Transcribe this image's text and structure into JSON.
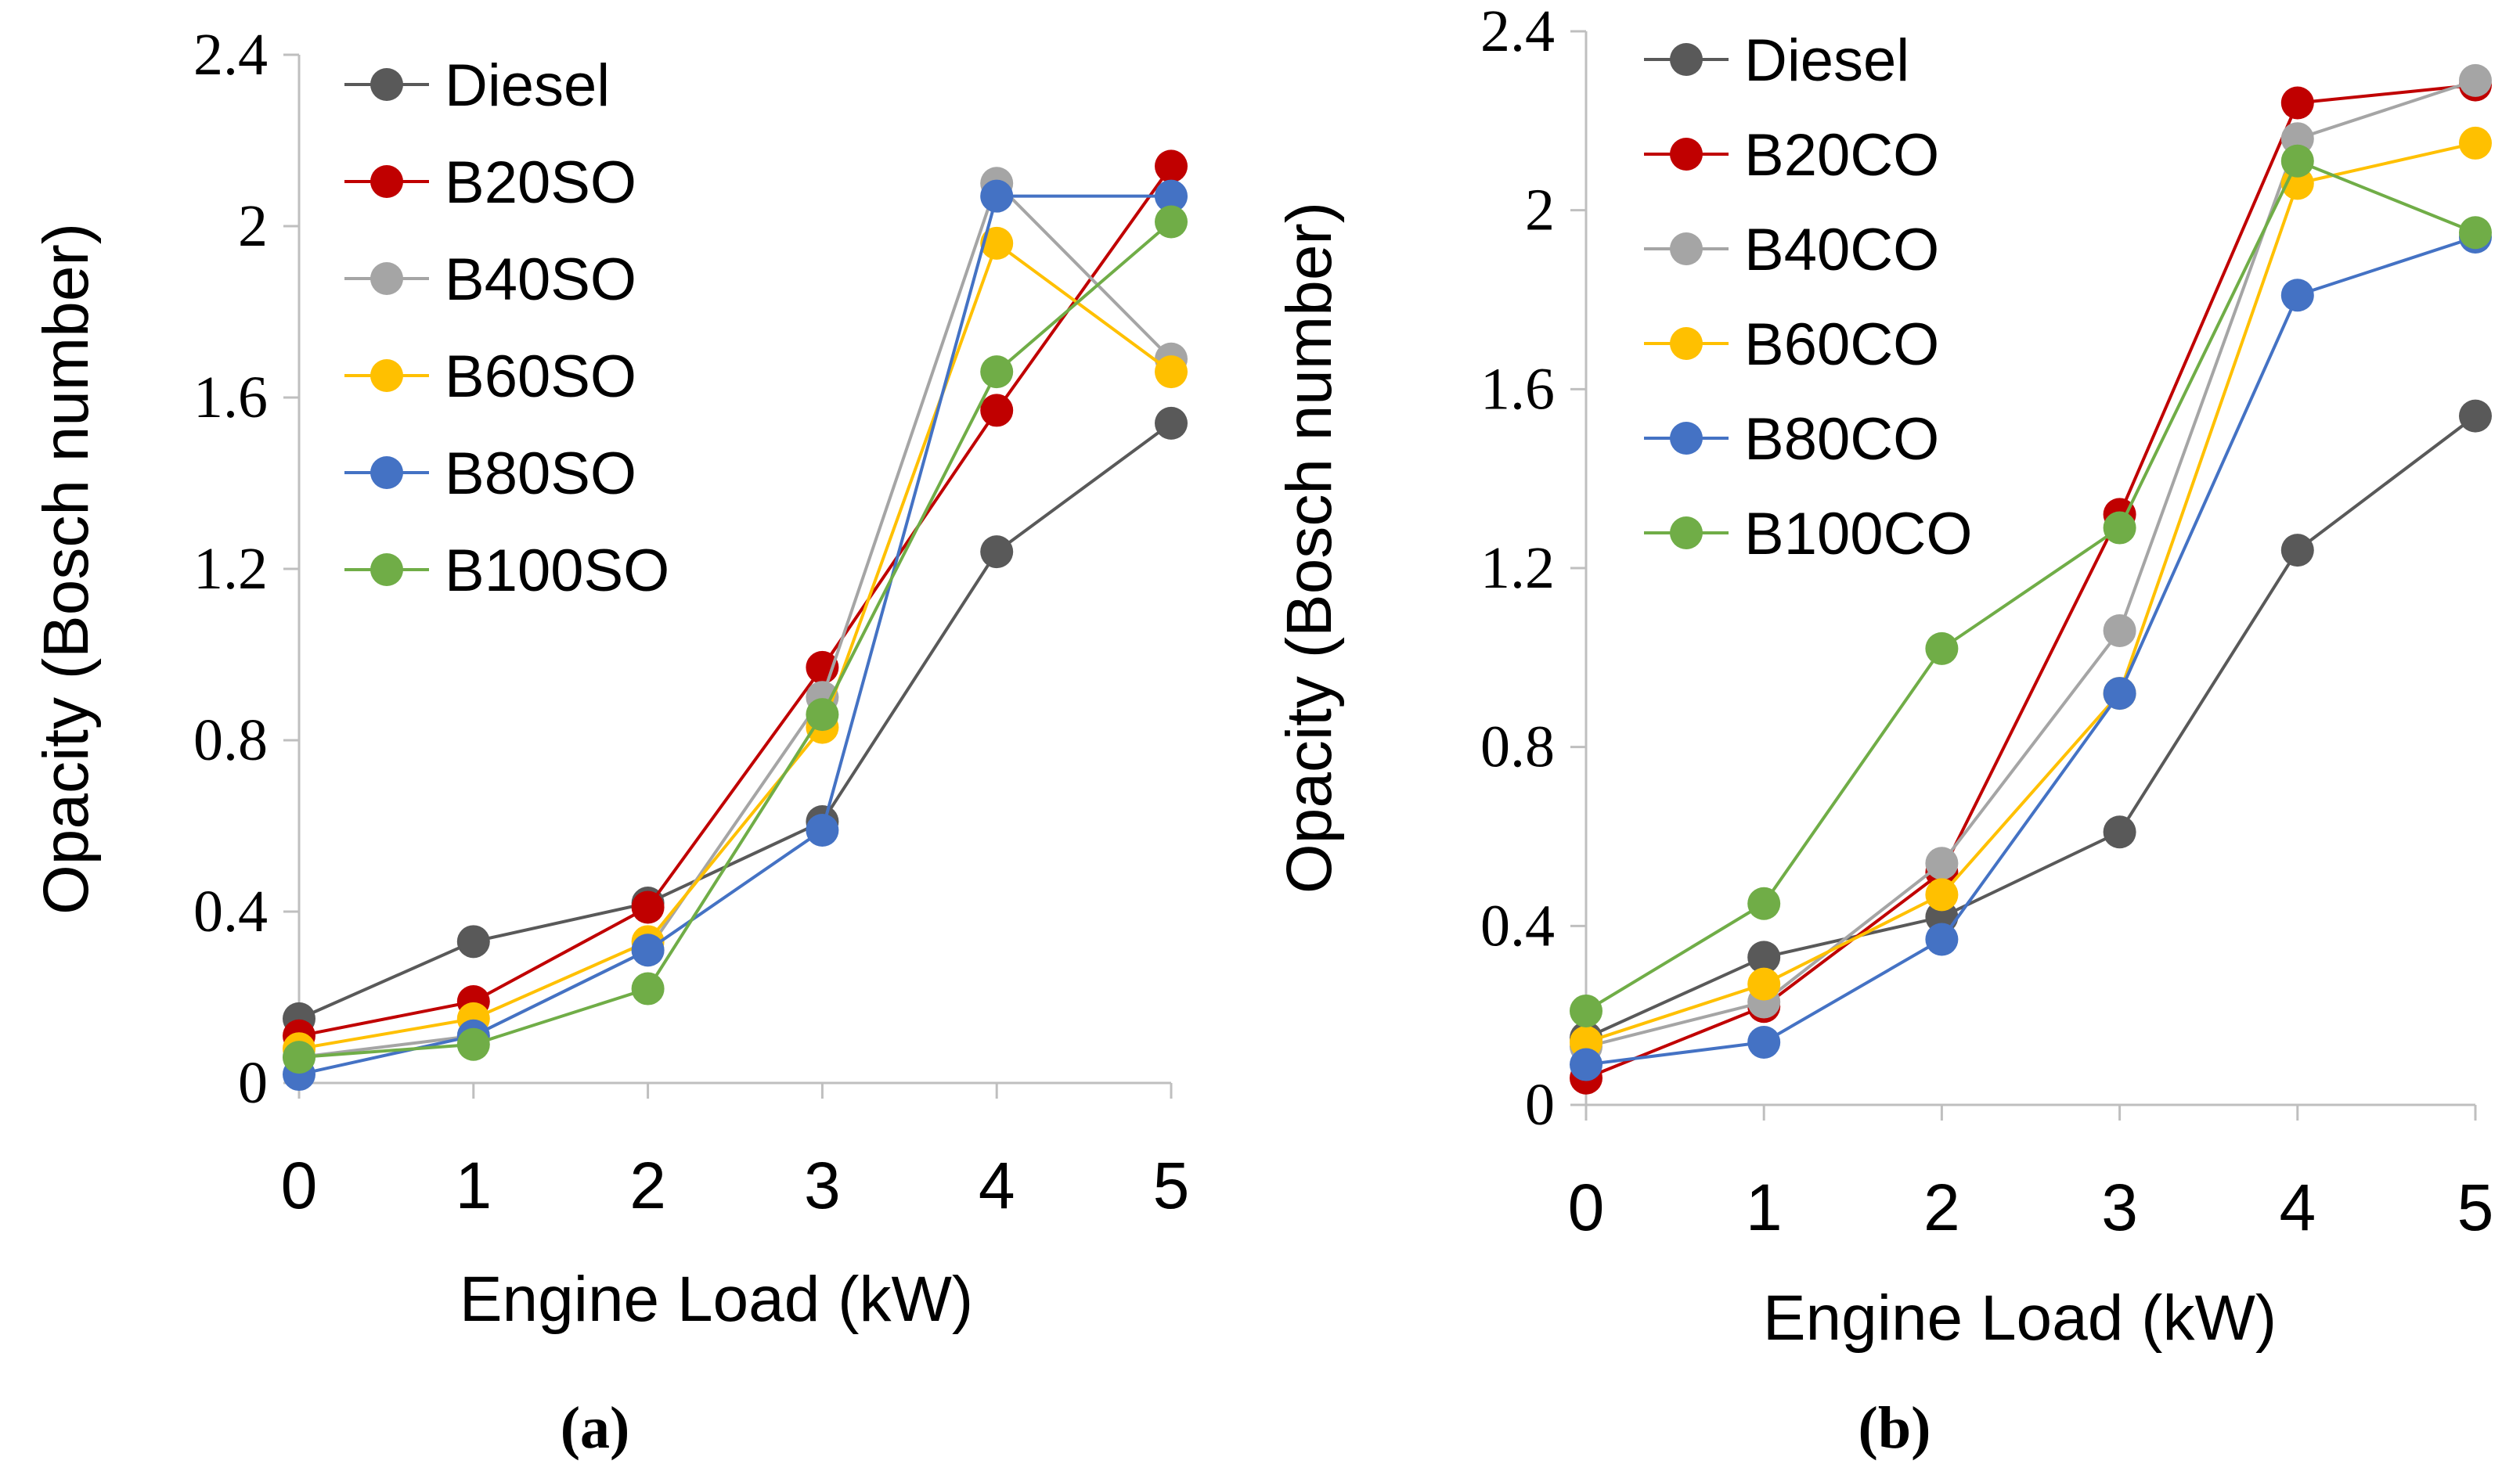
{
  "panels": [
    {
      "label": "(a)"
    },
    {
      "label": "(b)"
    }
  ],
  "chart_data": [
    {
      "type": "line",
      "xlabel": "Engine Load (kW)",
      "ylabel": "Opacity (Bosch number)",
      "x": [
        0,
        1,
        2,
        3,
        4,
        5
      ],
      "x_ticks": [
        "0",
        "1",
        "2",
        "3",
        "4",
        "5"
      ],
      "y_ticks": [
        "0",
        "0.4",
        "0.8",
        "1.2",
        "1.6",
        "2",
        "2.4"
      ],
      "ylim": [
        0,
        2.4
      ],
      "legend_position": "top-left",
      "grid": false,
      "series": [
        {
          "name": "Diesel",
          "color": "#595959",
          "values": [
            0.15,
            0.33,
            0.42,
            0.61,
            1.24,
            1.54
          ]
        },
        {
          "name": "B20SO",
          "color": "#c00000",
          "values": [
            0.11,
            0.19,
            0.41,
            0.97,
            1.57,
            2.14
          ]
        },
        {
          "name": "B40SO",
          "color": "#a5a5a5",
          "values": [
            0.06,
            0.11,
            0.31,
            0.9,
            2.1,
            1.69
          ]
        },
        {
          "name": "B60SO",
          "color": "#ffc000",
          "values": [
            0.08,
            0.15,
            0.33,
            0.83,
            1.96,
            1.66
          ]
        },
        {
          "name": "B80SO",
          "color": "#4472c4",
          "values": [
            0.02,
            0.11,
            0.31,
            0.59,
            2.07,
            2.07
          ]
        },
        {
          "name": "B100SO",
          "color": "#70ad47",
          "values": [
            0.06,
            0.09,
            0.22,
            0.86,
            1.66,
            2.01
          ]
        }
      ],
      "legend_color_note": "colors as drawn"
    },
    {
      "type": "line",
      "xlabel": "Engine Load (kW)",
      "ylabel": "Opacity (Bosch number)",
      "x": [
        0,
        1,
        2,
        3,
        4,
        5
      ],
      "x_ticks": [
        "0",
        "1",
        "2",
        "3",
        "4",
        "5"
      ],
      "y_ticks": [
        "0",
        "0.4",
        "0.8",
        "1.2",
        "1.6",
        "2",
        "2.4"
      ],
      "ylim": [
        0,
        2.4
      ],
      "legend_position": "top-left",
      "grid": false,
      "series": [
        {
          "name": "Diesel",
          "color": "#595959",
          "values": [
            0.15,
            0.33,
            0.42,
            0.61,
            1.24,
            1.54
          ]
        },
        {
          "name": "B20CO",
          "color": "#c00000",
          "values": [
            0.06,
            0.22,
            0.52,
            1.32,
            2.24,
            2.28
          ]
        },
        {
          "name": "B40CO",
          "color": "#a5a5a5",
          "values": [
            0.13,
            0.23,
            0.54,
            1.06,
            2.16,
            2.29
          ]
        },
        {
          "name": "B60CO",
          "color": "#ffc000",
          "values": [
            0.14,
            0.27,
            0.47,
            0.92,
            2.06,
            2.15
          ]
        },
        {
          "name": "B80CO",
          "color": "#4472c4",
          "values": [
            0.09,
            0.14,
            0.37,
            0.92,
            1.81,
            1.94
          ]
        },
        {
          "name": "B100CO",
          "color": "#70ad47",
          "values": [
            0.21,
            0.45,
            1.02,
            1.29,
            2.11,
            1.95
          ]
        }
      ]
    }
  ]
}
